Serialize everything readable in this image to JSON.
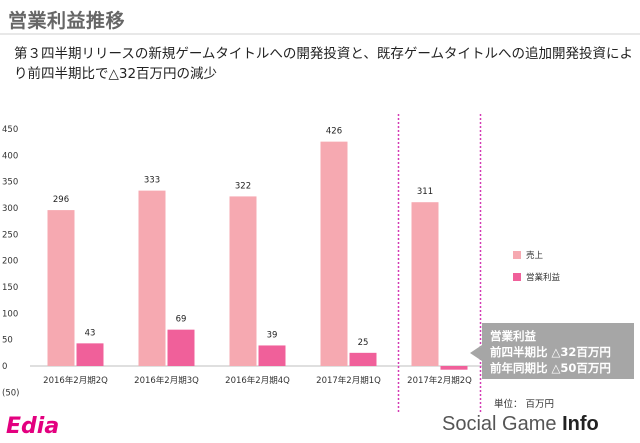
{
  "header": {
    "title": "営業利益推移",
    "subtitle": "第３四半期リリースの新規ゲームタイトルへの開発投資と、既存ゲームタイトルへの追加開発投資により前四半期比で△32百万円の減少"
  },
  "chart_data": {
    "type": "bar",
    "categories": [
      "2016年2月期2Q",
      "2016年2月期3Q",
      "2016年2月期4Q",
      "2017年2月期1Q",
      "2017年2月期2Q"
    ],
    "series": [
      {
        "name": "売上",
        "values": [
          296,
          333,
          322,
          426,
          311
        ],
        "color": "#f6a9b1"
      },
      {
        "name": "営業利益",
        "values": [
          43,
          69,
          39,
          25,
          -7
        ],
        "color": "#f0609a"
      }
    ],
    "data_labels": [
      "296",
      "333",
      "322",
      "426",
      "311",
      "43",
      "69",
      "39",
      "25",
      ""
    ],
    "y_ticks": [
      450,
      400,
      350,
      300,
      250,
      200,
      150,
      100,
      50,
      0,
      -50
    ],
    "y_tick_labels": [
      "450",
      "400",
      "350",
      "300",
      "250",
      "200",
      "150",
      "100",
      "50",
      "0",
      "(50)"
    ],
    "ylim": [
      -50,
      450
    ],
    "highlight_category_index": 4,
    "highlight_color": "#d43bb4",
    "legend_position": "right",
    "grid": false
  },
  "legend": {
    "items": [
      {
        "label": "売上",
        "color": "#f6a9b1"
      },
      {
        "label": "営業利益",
        "color": "#f0609a"
      }
    ]
  },
  "callout": {
    "line1": "営業利益",
    "line2": "前四半期比 △32百万円",
    "line3": "前年同期比 △50百万円"
  },
  "unit_label": "単位： 百万円",
  "footer": {
    "company_logo": "Edia",
    "brand_left": "Social Game ",
    "brand_right": "Info"
  }
}
